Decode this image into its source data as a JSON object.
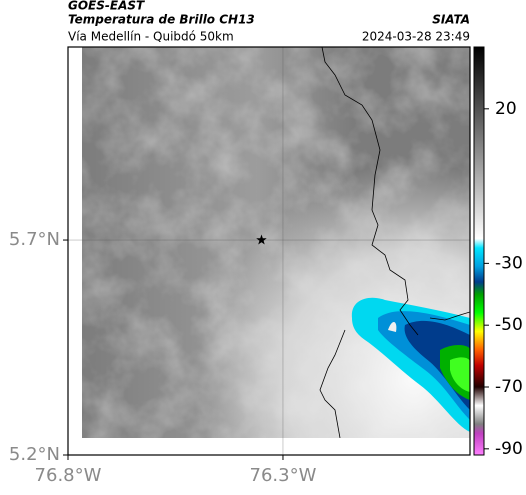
{
  "header": {
    "satellite": "GOES-EAST",
    "title": "Temperatura de Brillo CH13",
    "source": "SIATA",
    "subtitle": "Vía Medellín - Quibdó 50km",
    "timestamp": "2024-03-28 23:49"
  },
  "chart_data": {
    "type": "map",
    "xlim": [
      -76.8,
      -75.865
    ],
    "ylim": [
      5.2,
      6.149
    ],
    "xticks": [
      {
        "value": -76.8,
        "label": "76.8°W"
      },
      {
        "value": -76.3,
        "label": "76.3°W"
      }
    ],
    "yticks": [
      {
        "value": 5.2,
        "label": "5.2°N"
      },
      {
        "value": 5.7,
        "label": "5.7°N"
      }
    ],
    "grid": true,
    "marker": {
      "lon": -76.35,
      "lat": 5.7
    },
    "colorbar": {
      "clim": [
        -92,
        40
      ],
      "ticks": [
        20,
        -30,
        -50,
        -70,
        -90
      ],
      "colorscale": [
        {
          "value": 40,
          "color": "#000000"
        },
        {
          "value": -22,
          "color": "#ffffff"
        },
        {
          "value": -25,
          "color": "#00e5ff"
        },
        {
          "value": -31,
          "color": "#00a0e0"
        },
        {
          "value": -36,
          "color": "#003c8c"
        },
        {
          "value": -40,
          "color": "#00a000"
        },
        {
          "value": -46,
          "color": "#00ff00"
        },
        {
          "value": -52,
          "color": "#ffff00"
        },
        {
          "value": -58,
          "color": "#ff6000"
        },
        {
          "value": -63,
          "color": "#c00000"
        },
        {
          "value": -70,
          "color": "#200000"
        },
        {
          "value": -76,
          "color": "#ffffff"
        },
        {
          "value": -82,
          "color": "#808080"
        },
        {
          "value": -85,
          "color": "#c040c0"
        },
        {
          "value": -92,
          "color": "#ff80ff"
        }
      ]
    }
  }
}
